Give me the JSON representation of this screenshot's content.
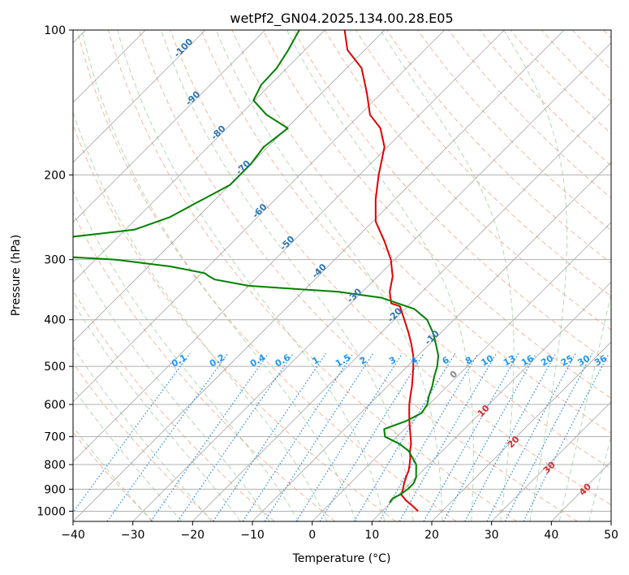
{
  "chart_data": {
    "type": "skew-t",
    "title": "wetPf2_GN04.2025.134.00.28.E05",
    "xlabel": "Temperature (°C)",
    "ylabel": "Pressure (hPa)",
    "xlim": [
      -40,
      50
    ],
    "ylim": [
      1050,
      100
    ],
    "y_scale": "log",
    "x_ticks": [
      -40,
      -30,
      -20,
      -10,
      0,
      10,
      20,
      30,
      40,
      50
    ],
    "y_ticks": [
      100,
      200,
      300,
      400,
      500,
      600,
      700,
      800,
      900,
      1000
    ],
    "series": [
      {
        "color": "#e00000",
        "points": [
          [
            1000,
            16
          ],
          [
            975,
            14.2
          ],
          [
            950,
            12.2
          ],
          [
            925,
            10.5
          ],
          [
            900,
            9.8
          ],
          [
            875,
            9.0
          ],
          [
            850,
            8.3
          ],
          [
            825,
            7.7
          ],
          [
            800,
            6.8
          ],
          [
            775,
            5.8
          ],
          [
            750,
            4.6
          ],
          [
            725,
            3.6
          ],
          [
            700,
            2.3
          ],
          [
            675,
            0.9
          ],
          [
            650,
            -0.5
          ],
          [
            625,
            -1.9
          ],
          [
            600,
            -3.3
          ],
          [
            575,
            -4.6
          ],
          [
            550,
            -5.9
          ],
          [
            525,
            -7.4
          ],
          [
            500,
            -9.0
          ],
          [
            475,
            -10.8
          ],
          [
            450,
            -13.0
          ],
          [
            425,
            -15.5
          ],
          [
            400,
            -18.3
          ],
          [
            375,
            -21.3
          ],
          [
            370,
            -23.2
          ],
          [
            350,
            -25.4
          ],
          [
            325,
            -27.5
          ],
          [
            300,
            -30.6
          ],
          [
            275,
            -34.7
          ],
          [
            250,
            -39.5
          ],
          [
            225,
            -43.2
          ],
          [
            200,
            -46.8
          ],
          [
            175,
            -50.5
          ],
          [
            160,
            -54.3
          ],
          [
            150,
            -58.3
          ],
          [
            135,
            -62.5
          ],
          [
            120,
            -67.5
          ],
          [
            110,
            -72.9
          ],
          [
            100,
            -76.7
          ]
        ]
      },
      {
        "color": "#008000",
        "points": [
          [
            960,
            9.8
          ],
          [
            940,
            9.6
          ],
          [
            925,
            10.2
          ],
          [
            900,
            10.6
          ],
          [
            875,
            10.6
          ],
          [
            850,
            10.0
          ],
          [
            800,
            7.9
          ],
          [
            750,
            4.4
          ],
          [
            725,
            1.7
          ],
          [
            700,
            -2.0
          ],
          [
            675,
            -3.4
          ],
          [
            650,
            -1.1
          ],
          [
            625,
            0.2
          ],
          [
            600,
            -0.3
          ],
          [
            575,
            -1.5
          ],
          [
            550,
            -2.5
          ],
          [
            525,
            -3.8
          ],
          [
            500,
            -5.0
          ],
          [
            475,
            -6.6
          ],
          [
            450,
            -8.9
          ],
          [
            425,
            -11.4
          ],
          [
            400,
            -14.5
          ],
          [
            380,
            -18.4
          ],
          [
            360,
            -25.8
          ],
          [
            350,
            -34.0
          ],
          [
            340,
            -50.0
          ],
          [
            330,
            -56.7
          ],
          [
            325,
            -58.2
          ],
          [
            320,
            -59.5
          ],
          [
            310,
            -66.3
          ],
          [
            300,
            -76.6
          ],
          [
            290,
            -98.8
          ],
          [
            270,
            -88.8
          ],
          [
            260,
            -78.5
          ],
          [
            245,
            -74.7
          ],
          [
            230,
            -72.8
          ],
          [
            210,
            -70.0
          ],
          [
            190,
            -70.0
          ],
          [
            175,
            -70.7
          ],
          [
            160,
            -69.8
          ],
          [
            150,
            -75.6
          ],
          [
            140,
            -80.2
          ],
          [
            130,
            -81.5
          ],
          [
            120,
            -81.7
          ],
          [
            110,
            -82.8
          ],
          [
            100,
            -84.3
          ]
        ]
      }
    ],
    "isotherm_labels": [
      "-100",
      "-90",
      "-80",
      "-70",
      "-60",
      "-50",
      "-40",
      "-30",
      "-20",
      "-10"
    ],
    "mixing_ratio_labels": [
      "0.1",
      "0.2",
      "0.4",
      "0.6",
      "1",
      "1.5",
      "2",
      "3",
      "4",
      "6",
      "8",
      "10",
      "13",
      "16",
      "20",
      "25",
      "30",
      "36"
    ],
    "moist_adiabat_labels": [
      "0",
      "10",
      "20",
      "30",
      "40"
    ]
  }
}
